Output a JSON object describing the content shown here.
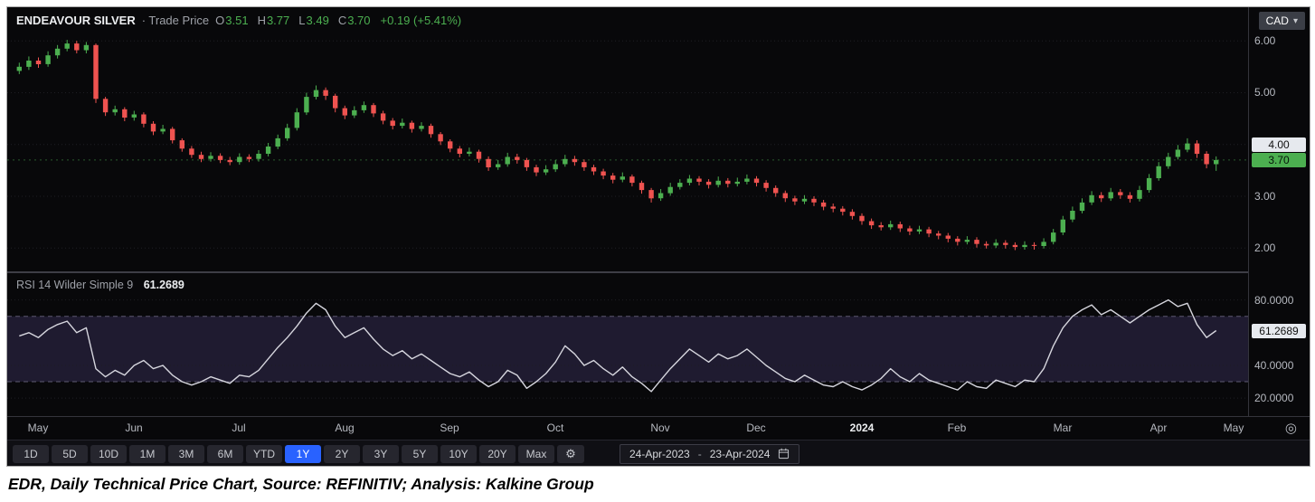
{
  "header": {
    "symbol": "ENDEAVOUR SILVER",
    "series_label": "· Trade Price",
    "ohlc": [
      {
        "label": "O",
        "value": "3.51"
      },
      {
        "label": "H",
        "value": "3.77"
      },
      {
        "label": "L",
        "value": "3.49"
      },
      {
        "label": "C",
        "value": "3.70"
      }
    ],
    "change": "+0.19 (+5.41%)",
    "currency": "CAD",
    "currency_chevron": "▾"
  },
  "price_axis": {
    "labels": [
      {
        "text": "6.00",
        "value": 6.0
      },
      {
        "text": "5.00",
        "value": 5.0
      },
      {
        "text": "3.00",
        "value": 3.0
      },
      {
        "text": "2.00",
        "value": 2.0
      }
    ],
    "badges": [
      {
        "text": "4.00",
        "value": 4.0,
        "style": "light"
      },
      {
        "text": "3.70",
        "value": 3.7,
        "style": "up"
      }
    ]
  },
  "rsi": {
    "legend": "RSI 14 Wilder Simple 9",
    "value": "61.2689",
    "axis_labels": [
      {
        "text": "80.0000",
        "value": 80
      },
      {
        "text": "40.0000",
        "value": 40
      },
      {
        "text": "20.0000",
        "value": 20
      }
    ],
    "badge": {
      "text": "61.2689",
      "value": 61.2689
    }
  },
  "time_axis": {
    "labels": [
      {
        "text": "May",
        "index": 0
      },
      {
        "text": "Jun",
        "index": 10
      },
      {
        "text": "Jul",
        "index": 21
      },
      {
        "text": "Aug",
        "index": 32
      },
      {
        "text": "Sep",
        "index": 43
      },
      {
        "text": "Oct",
        "index": 54
      },
      {
        "text": "Nov",
        "index": 65
      },
      {
        "text": "Dec",
        "index": 75
      },
      {
        "text": "2024",
        "index": 86,
        "emphasis": true
      },
      {
        "text": "Feb",
        "index": 96
      },
      {
        "text": "Mar",
        "index": 107
      },
      {
        "text": "Apr",
        "index": 117
      },
      {
        "text": "May",
        "index": 126
      }
    ],
    "target_icon": "◎"
  },
  "toolbar": {
    "periods": [
      {
        "label": "1D"
      },
      {
        "label": "5D"
      },
      {
        "label": "10D"
      },
      {
        "label": "1M"
      },
      {
        "label": "3M"
      },
      {
        "label": "6M"
      },
      {
        "label": "YTD"
      },
      {
        "label": "1Y",
        "selected": true
      },
      {
        "label": "2Y"
      },
      {
        "label": "3Y"
      },
      {
        "label": "5Y"
      },
      {
        "label": "10Y"
      },
      {
        "label": "20Y"
      },
      {
        "label": "Max"
      }
    ],
    "settings_icon": "⚙",
    "date_from": "24-Apr-2023",
    "date_separator": "-",
    "date_to": "23-Apr-2024"
  },
  "caption": "EDR, Daily Technical Price Chart, Source: REFINITIV; Analysis: Kalkine Group",
  "colors": {
    "up": "#4caf50",
    "down": "#ef5350",
    "accent_blue": "#2962ff",
    "rsi_line": "#d6d6de",
    "band_fill": "#4a3f78"
  },
  "chart_data": [
    {
      "type": "candlestick",
      "title": "ENDEAVOUR SILVER · Trade Price",
      "currency": "CAD",
      "x_range": [
        "24-Apr-2023",
        "23-Apr-2024"
      ],
      "x_tick_labels": [
        "May",
        "Jun",
        "Jul",
        "Aug",
        "Sep",
        "Oct",
        "Nov",
        "Dec",
        "2024",
        "Feb",
        "Mar",
        "Apr",
        "May"
      ],
      "y_axis": {
        "ticks": [
          2,
          3,
          4,
          5,
          6
        ],
        "range": [
          1.55,
          6.65
        ],
        "last_price": 3.7
      },
      "last_ohlc": {
        "open": 3.51,
        "high": 3.77,
        "low": 3.49,
        "close": 3.7,
        "change": "+0.19 (+5.41%)"
      },
      "candles": [
        [
          5.42,
          5.58,
          5.36,
          5.5
        ],
        [
          5.5,
          5.7,
          5.44,
          5.62
        ],
        [
          5.62,
          5.68,
          5.48,
          5.55
        ],
        [
          5.55,
          5.8,
          5.5,
          5.72
        ],
        [
          5.72,
          5.92,
          5.66,
          5.85
        ],
        [
          5.85,
          6.02,
          5.8,
          5.95
        ],
        [
          5.95,
          6.0,
          5.76,
          5.82
        ],
        [
          5.82,
          5.98,
          5.76,
          5.92
        ],
        [
          5.92,
          5.95,
          4.8,
          4.88
        ],
        [
          4.88,
          4.92,
          4.55,
          4.62
        ],
        [
          4.62,
          4.75,
          4.56,
          4.68
        ],
        [
          4.68,
          4.72,
          4.45,
          4.52
        ],
        [
          4.52,
          4.65,
          4.46,
          4.58
        ],
        [
          4.58,
          4.62,
          4.33,
          4.4
        ],
        [
          4.4,
          4.45,
          4.18,
          4.25
        ],
        [
          4.25,
          4.38,
          4.2,
          4.3
        ],
        [
          4.3,
          4.34,
          4.02,
          4.08
        ],
        [
          4.08,
          4.12,
          3.86,
          3.92
        ],
        [
          3.92,
          3.97,
          3.74,
          3.8
        ],
        [
          3.8,
          3.86,
          3.66,
          3.72
        ],
        [
          3.72,
          3.85,
          3.67,
          3.78
        ],
        [
          3.78,
          3.83,
          3.64,
          3.7
        ],
        [
          3.7,
          3.76,
          3.6,
          3.66
        ],
        [
          3.66,
          3.83,
          3.61,
          3.76
        ],
        [
          3.76,
          3.81,
          3.66,
          3.72
        ],
        [
          3.72,
          3.89,
          3.67,
          3.82
        ],
        [
          3.82,
          4.03,
          3.77,
          3.96
        ],
        [
          3.96,
          4.19,
          3.91,
          4.12
        ],
        [
          4.12,
          4.4,
          4.07,
          4.32
        ],
        [
          4.32,
          4.7,
          4.27,
          4.62
        ],
        [
          4.62,
          5.0,
          4.57,
          4.92
        ],
        [
          4.92,
          5.14,
          4.87,
          5.05
        ],
        [
          5.05,
          5.1,
          4.86,
          4.94
        ],
        [
          4.94,
          4.98,
          4.62,
          4.7
        ],
        [
          4.7,
          4.75,
          4.49,
          4.56
        ],
        [
          4.56,
          4.74,
          4.51,
          4.66
        ],
        [
          4.66,
          4.83,
          4.61,
          4.76
        ],
        [
          4.76,
          4.8,
          4.53,
          4.6
        ],
        [
          4.6,
          4.65,
          4.39,
          4.46
        ],
        [
          4.46,
          4.51,
          4.29,
          4.36
        ],
        [
          4.36,
          4.5,
          4.31,
          4.42
        ],
        [
          4.42,
          4.46,
          4.23,
          4.3
        ],
        [
          4.3,
          4.43,
          4.25,
          4.36
        ],
        [
          4.36,
          4.4,
          4.13,
          4.2
        ],
        [
          4.2,
          4.24,
          3.99,
          4.06
        ],
        [
          4.06,
          4.1,
          3.85,
          3.92
        ],
        [
          3.92,
          3.97,
          3.75,
          3.82
        ],
        [
          3.82,
          3.94,
          3.77,
          3.86
        ],
        [
          3.86,
          3.9,
          3.65,
          3.72
        ],
        [
          3.72,
          3.77,
          3.49,
          3.56
        ],
        [
          3.56,
          3.7,
          3.51,
          3.62
        ],
        [
          3.62,
          3.84,
          3.57,
          3.76
        ],
        [
          3.76,
          3.82,
          3.63,
          3.7
        ],
        [
          3.7,
          3.74,
          3.49,
          3.56
        ],
        [
          3.56,
          3.61,
          3.39,
          3.46
        ],
        [
          3.46,
          3.6,
          3.41,
          3.52
        ],
        [
          3.52,
          3.7,
          3.47,
          3.62
        ],
        [
          3.62,
          3.8,
          3.57,
          3.72
        ],
        [
          3.72,
          3.78,
          3.59,
          3.66
        ],
        [
          3.66,
          3.71,
          3.49,
          3.56
        ],
        [
          3.56,
          3.61,
          3.41,
          3.48
        ],
        [
          3.48,
          3.53,
          3.33,
          3.4
        ],
        [
          3.4,
          3.45,
          3.25,
          3.32
        ],
        [
          3.32,
          3.46,
          3.27,
          3.38
        ],
        [
          3.38,
          3.42,
          3.19,
          3.26
        ],
        [
          3.26,
          3.3,
          3.05,
          3.12
        ],
        [
          3.12,
          3.16,
          2.88,
          2.96
        ],
        [
          2.96,
          3.14,
          2.91,
          3.06
        ],
        [
          3.06,
          3.26,
          3.01,
          3.18
        ],
        [
          3.18,
          3.33,
          3.13,
          3.26
        ],
        [
          3.26,
          3.41,
          3.21,
          3.34
        ],
        [
          3.34,
          3.39,
          3.21,
          3.28
        ],
        [
          3.28,
          3.33,
          3.15,
          3.22
        ],
        [
          3.22,
          3.38,
          3.17,
          3.3
        ],
        [
          3.3,
          3.35,
          3.17,
          3.24
        ],
        [
          3.24,
          3.36,
          3.19,
          3.28
        ],
        [
          3.28,
          3.42,
          3.23,
          3.34
        ],
        [
          3.34,
          3.39,
          3.19,
          3.26
        ],
        [
          3.26,
          3.31,
          3.09,
          3.16
        ],
        [
          3.16,
          3.21,
          2.99,
          3.06
        ],
        [
          3.06,
          3.11,
          2.89,
          2.96
        ],
        [
          2.96,
          3.01,
          2.83,
          2.9
        ],
        [
          2.9,
          3.02,
          2.85,
          2.95
        ],
        [
          2.95,
          3.0,
          2.81,
          2.88
        ],
        [
          2.88,
          2.93,
          2.73,
          2.8
        ],
        [
          2.8,
          2.86,
          2.69,
          2.76
        ],
        [
          2.76,
          2.81,
          2.63,
          2.7
        ],
        [
          2.7,
          2.75,
          2.55,
          2.62
        ],
        [
          2.62,
          2.67,
          2.45,
          2.52
        ],
        [
          2.52,
          2.57,
          2.37,
          2.44
        ],
        [
          2.44,
          2.5,
          2.34,
          2.4
        ],
        [
          2.4,
          2.53,
          2.35,
          2.46
        ],
        [
          2.46,
          2.51,
          2.31,
          2.38
        ],
        [
          2.38,
          2.43,
          2.25,
          2.32
        ],
        [
          2.32,
          2.43,
          2.27,
          2.36
        ],
        [
          2.36,
          2.41,
          2.21,
          2.28
        ],
        [
          2.28,
          2.33,
          2.17,
          2.24
        ],
        [
          2.24,
          2.29,
          2.11,
          2.18
        ],
        [
          2.18,
          2.23,
          2.05,
          2.12
        ],
        [
          2.12,
          2.23,
          2.07,
          2.16
        ],
        [
          2.16,
          2.21,
          2.01,
          2.08
        ],
        [
          2.08,
          2.13,
          1.99,
          2.05
        ],
        [
          2.05,
          2.17,
          2.0,
          2.1
        ],
        [
          2.1,
          2.15,
          1.99,
          2.06
        ],
        [
          2.06,
          2.11,
          1.96,
          2.02
        ],
        [
          2.02,
          2.13,
          1.97,
          2.06
        ],
        [
          2.06,
          2.11,
          1.97,
          2.04
        ],
        [
          2.04,
          2.19,
          1.99,
          2.12
        ],
        [
          2.12,
          2.37,
          2.07,
          2.3
        ],
        [
          2.3,
          2.62,
          2.25,
          2.55
        ],
        [
          2.55,
          2.8,
          2.5,
          2.72
        ],
        [
          2.72,
          2.96,
          2.67,
          2.88
        ],
        [
          2.88,
          3.1,
          2.83,
          3.02
        ],
        [
          3.02,
          3.08,
          2.89,
          2.96
        ],
        [
          2.96,
          3.16,
          2.91,
          3.08
        ],
        [
          3.08,
          3.14,
          2.95,
          3.02
        ],
        [
          3.02,
          3.08,
          2.88,
          2.95
        ],
        [
          2.95,
          3.2,
          2.9,
          3.12
        ],
        [
          3.12,
          3.43,
          3.07,
          3.35
        ],
        [
          3.35,
          3.66,
          3.3,
          3.58
        ],
        [
          3.58,
          3.84,
          3.53,
          3.76
        ],
        [
          3.76,
          3.99,
          3.71,
          3.9
        ],
        [
          3.9,
          4.12,
          3.85,
          4.02
        ],
        [
          4.02,
          4.08,
          3.74,
          3.82
        ],
        [
          3.82,
          3.87,
          3.54,
          3.62
        ],
        [
          3.62,
          3.77,
          3.49,
          3.7
        ]
      ]
    },
    {
      "type": "line",
      "title": "RSI 14 Wilder Simple 9",
      "last_value": 61.2689,
      "y_axis": {
        "ticks": [
          80,
          40,
          20
        ],
        "band": [
          30,
          70
        ],
        "range": [
          9,
          96.4
        ]
      },
      "values": [
        58,
        60,
        57,
        62,
        65,
        67,
        60,
        63,
        38,
        33,
        37,
        34,
        40,
        43,
        38,
        40,
        34,
        30,
        28,
        30,
        33,
        31,
        29,
        34,
        33,
        37,
        44,
        51,
        57,
        64,
        72,
        78,
        74,
        64,
        57,
        60,
        63,
        56,
        50,
        46,
        49,
        44,
        47,
        43,
        39,
        35,
        33,
        36,
        31,
        27,
        30,
        37,
        34,
        26,
        30,
        35,
        42,
        52,
        47,
        40,
        43,
        38,
        34,
        39,
        33,
        29,
        24,
        31,
        38,
        44,
        50,
        46,
        42,
        47,
        44,
        46,
        50,
        45,
        40,
        36,
        32,
        30,
        34,
        31,
        28,
        27,
        30,
        27,
        25,
        28,
        32,
        38,
        33,
        30,
        35,
        31,
        29,
        27,
        25,
        30,
        27,
        26,
        31,
        29,
        27,
        31,
        30,
        38,
        52,
        63,
        70,
        74,
        77,
        71,
        74,
        70,
        66,
        70,
        74,
        77,
        80,
        76,
        78,
        65,
        57,
        61.2689
      ]
    }
  ]
}
